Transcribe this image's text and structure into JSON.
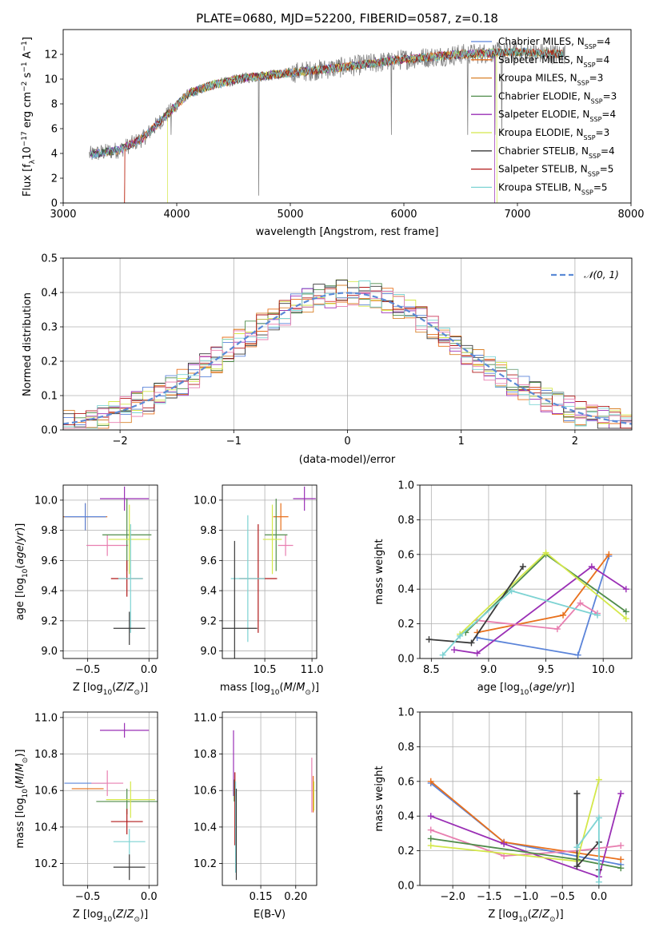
{
  "colors": {
    "Chabrier MILES": "#5b84d9",
    "Salpeter MILES": "#e8701c",
    "Kroupa MILES": "#d9822b",
    "Chabrier ELODIE": "#4f8c4a",
    "Salpeter ELODIE": "#9a2fb5",
    "Kroupa ELODIE": "#d4e84a",
    "Chabrier STELIB": "#3a3a3a",
    "Salpeter STELIB": "#b01818",
    "Kroupa STELIB": "#7dd3d3",
    "pink": "#e87fb0",
    "data": "#808080",
    "normal": "#5b8ad6"
  },
  "chart_data": [
    {
      "id": "spectrum",
      "type": "line",
      "title": "PLATE=0680, MJD=52200, FIBERID=0587, z=0.18",
      "xlabel": "wavelength [Angstrom, rest frame]",
      "xlim": [
        3000,
        8000
      ],
      "ylim": [
        0,
        14
      ],
      "xticks": [
        "3000",
        "4000",
        "5000",
        "6000",
        "7000",
        "8000"
      ],
      "yticks": [
        "0",
        "2",
        "4",
        "6",
        "8",
        "10",
        "12"
      ],
      "legend_position": "top-right",
      "legend": [
        {
          "prefix": "Chabrier MILES, N",
          "sub": "SSP",
          "suffix": "=4",
          "color": "#5b84d9"
        },
        {
          "prefix": "Salpeter MILES, N",
          "sub": "SSP",
          "suffix": "=4",
          "color": "#e8701c"
        },
        {
          "prefix": "Kroupa MILES, N",
          "sub": "SSP",
          "suffix": "=3",
          "color": "#d9822b"
        },
        {
          "prefix": "Chabrier ELODIE, N",
          "sub": "SSP",
          "suffix": "=3",
          "color": "#4f8c4a"
        },
        {
          "prefix": "Salpeter ELODIE, N",
          "sub": "SSP",
          "suffix": "=4",
          "color": "#9a2fb5"
        },
        {
          "prefix": "Kroupa ELODIE, N",
          "sub": "SSP",
          "suffix": "=3",
          "color": "#d4e84a"
        },
        {
          "prefix": "Chabrier STELIB, N",
          "sub": "SSP",
          "suffix": "=4",
          "color": "#3a3a3a"
        },
        {
          "prefix": "Salpeter STELIB, N",
          "sub": "SSP",
          "suffix": "=5",
          "color": "#b01818"
        },
        {
          "prefix": "Kroupa STELIB, N",
          "sub": "SSP",
          "suffix": "=5",
          "color": "#7dd3d3"
        }
      ],
      "continuum": {
        "x": [
          3230,
          3500,
          3700,
          3900,
          4100,
          4300,
          4600,
          5000,
          5500,
          6000,
          6500,
          7000,
          7400
        ],
        "y": [
          3.9,
          4.3,
          5.2,
          7.0,
          8.8,
          9.5,
          10.1,
          10.5,
          11.0,
          11.6,
          12.0,
          12.2,
          12.0
        ]
      }
    },
    {
      "id": "residuals",
      "type": "line",
      "xlabel": "(data-model)/error",
      "ylabel": "Normed distribution",
      "xlim": [
        -2.5,
        2.5
      ],
      "ylim": [
        0,
        0.5
      ],
      "xticks": [
        "−2",
        "−1",
        "0",
        "1",
        "2"
      ],
      "yticks": [
        "0.0",
        "0.1",
        "0.2",
        "0.3",
        "0.4",
        "0.5"
      ],
      "legend": "𝒩(0, 1)",
      "legend_position": "top-right"
    },
    {
      "id": "age-vs-Z",
      "type": "scatter",
      "xlim": [
        -0.7,
        0.07
      ],
      "ylim": [
        8.95,
        10.1
      ],
      "xticks": [
        "−0.5",
        "0.0"
      ],
      "yticks": [
        "9.0",
        "9.2",
        "9.4",
        "9.6",
        "9.8",
        "10.0"
      ],
      "points": [
        {
          "x": -0.52,
          "y": 9.89,
          "xerr": 0.18,
          "yerr": 0.09,
          "c": "#e8701c"
        },
        {
          "x": -0.52,
          "y": 9.89,
          "xerr": 0.17,
          "yerr": 0.09,
          "c": "#5b84d9"
        },
        {
          "x": -0.34,
          "y": 9.7,
          "xerr": 0.17,
          "yerr": 0.07,
          "c": "#e87fb0"
        },
        {
          "x": -0.2,
          "y": 10.01,
          "xerr": 0.2,
          "yerr": 0.08,
          "c": "#9a2fb5"
        },
        {
          "x": -0.18,
          "y": 9.77,
          "xerr": 0.2,
          "yerr": 0.24,
          "c": "#4f8c4a"
        },
        {
          "x": -0.16,
          "y": 9.74,
          "xerr": 0.17,
          "yerr": 0.23,
          "c": "#d4e84a"
        },
        {
          "x": -0.18,
          "y": 9.48,
          "xerr": 0.13,
          "yerr": 0.12,
          "c": "#b01818"
        },
        {
          "x": -0.15,
          "y": 9.48,
          "xerr": 0.1,
          "yerr": 0.36,
          "c": "#7dd3d3"
        },
        {
          "x": -0.16,
          "y": 9.15,
          "xerr": 0.13,
          "yerr": 0.11,
          "c": "#3a3a3a"
        }
      ]
    },
    {
      "id": "age-vs-mass",
      "type": "scatter",
      "xlim": [
        10.05,
        11.05
      ],
      "ylim": [
        8.95,
        10.1
      ],
      "xticks": [
        "10.5",
        "11.0"
      ],
      "yticks": [
        "9.0",
        "9.2",
        "9.4",
        "9.6",
        "9.8",
        "10.0"
      ],
      "points": [
        {
          "x": 10.67,
          "y": 9.89,
          "xerr": 0.08,
          "yerr": 0.09,
          "c": "#e8701c"
        },
        {
          "x": 10.72,
          "y": 9.7,
          "xerr": 0.08,
          "yerr": 0.07,
          "c": "#e87fb0"
        },
        {
          "x": 10.92,
          "y": 10.01,
          "xerr": 0.12,
          "yerr": 0.08,
          "c": "#9a2fb5"
        },
        {
          "x": 10.62,
          "y": 9.77,
          "xerr": 0.12,
          "yerr": 0.24,
          "c": "#4f8c4a"
        },
        {
          "x": 10.58,
          "y": 9.74,
          "xerr": 0.1,
          "yerr": 0.23,
          "c": "#d4e84a"
        },
        {
          "x": 10.43,
          "y": 9.48,
          "xerr": 0.2,
          "yerr": 0.36,
          "c": "#b01818"
        },
        {
          "x": 10.32,
          "y": 9.48,
          "xerr": 0.18,
          "yerr": 0.42,
          "c": "#7dd3d3"
        },
        {
          "x": 10.18,
          "y": 9.15,
          "xerr": 0.24,
          "yerr": 0.58,
          "c": "#3a3a3a"
        }
      ]
    },
    {
      "id": "weight-vs-age",
      "type": "line",
      "xlabel": "age",
      "ylabel": "mass weight",
      "xlim": [
        8.4,
        10.25
      ],
      "ylim": [
        0,
        1
      ],
      "xticks": [
        "8.5",
        "9.0",
        "9.5",
        "10.0"
      ],
      "yticks": [
        "0.0",
        "0.2",
        "0.4",
        "0.6",
        "0.8",
        "1.0"
      ],
      "series": [
        {
          "c": "#5b84d9",
          "x": [
            8.9,
            9.78,
            10.05
          ],
          "y": [
            0.12,
            0.02,
            0.59
          ]
        },
        {
          "c": "#e8701c",
          "x": [
            8.9,
            9.65,
            10.05
          ],
          "y": [
            0.15,
            0.25,
            0.6
          ]
        },
        {
          "c": "#9a2fb5",
          "x": [
            8.7,
            8.9,
            9.9,
            10.2
          ],
          "y": [
            0.05,
            0.03,
            0.53,
            0.4
          ]
        },
        {
          "c": "#e87fb0",
          "x": [
            8.9,
            9.6,
            9.8,
            9.95
          ],
          "y": [
            0.22,
            0.17,
            0.32,
            0.26
          ]
        },
        {
          "c": "#4f8c4a",
          "x": [
            8.8,
            9.5,
            10.2
          ],
          "y": [
            0.15,
            0.6,
            0.27
          ]
        },
        {
          "c": "#d4e84a",
          "x": [
            8.75,
            9.5,
            10.2
          ],
          "y": [
            0.14,
            0.61,
            0.23
          ]
        },
        {
          "c": "#3a3a3a",
          "x": [
            8.48,
            8.85,
            9.3
          ],
          "y": [
            0.11,
            0.09,
            0.53
          ]
        },
        {
          "c": "#7dd3d3",
          "x": [
            8.6,
            8.75,
            9.2,
            9.95
          ],
          "y": [
            0.02,
            0.13,
            0.39,
            0.25
          ]
        }
      ]
    },
    {
      "id": "mass-vs-Z",
      "type": "scatter",
      "xlim": [
        -0.7,
        0.07
      ],
      "ylim": [
        10.08,
        11.03
      ],
      "xticks": [
        "−0.5",
        "0.0"
      ],
      "yticks": [
        "10.2",
        "10.4",
        "10.6",
        "10.8",
        "11.0"
      ],
      "points": [
        {
          "x": -0.52,
          "y": 10.64,
          "xerr": 0.17,
          "yerr": 0.0,
          "c": "#5b84d9"
        },
        {
          "x": -0.5,
          "y": 10.61,
          "xerr": 0.13,
          "yerr": 0.0,
          "c": "#e8701c"
        },
        {
          "x": -0.34,
          "y": 10.64,
          "xerr": 0.13,
          "yerr": 0.07,
          "c": "#e87fb0"
        },
        {
          "x": -0.2,
          "y": 10.93,
          "xerr": 0.2,
          "yerr": 0.04,
          "c": "#9a2fb5"
        },
        {
          "x": -0.18,
          "y": 10.54,
          "xerr": 0.25,
          "yerr": 0.07,
          "c": "#4f8c4a"
        },
        {
          "x": -0.15,
          "y": 10.55,
          "xerr": 0.2,
          "yerr": 0.1,
          "c": "#d4e84a"
        },
        {
          "x": -0.18,
          "y": 10.43,
          "xerr": 0.13,
          "yerr": 0.07,
          "c": "#b01818"
        },
        {
          "x": -0.16,
          "y": 10.32,
          "xerr": 0.13,
          "yerr": 0.07,
          "c": "#7dd3d3"
        },
        {
          "x": -0.16,
          "y": 10.18,
          "xerr": 0.13,
          "yerr": 0.07,
          "c": "#3a3a3a"
        }
      ]
    },
    {
      "id": "mass-vs-EBV",
      "type": "scatter",
      "xlabel": "E(B-V)",
      "xlim": [
        0.095,
        0.23
      ],
      "ylim": [
        10.08,
        11.03
      ],
      "xticks": [
        "0.15",
        "0.20"
      ],
      "yticks": [
        "10.2",
        "10.4",
        "10.6",
        "10.8",
        "11.0"
      ],
      "points": [
        {
          "x": 0.111,
          "y": 10.75,
          "xerr": 0.0,
          "yerr": 0.18,
          "c": "#9a2fb5"
        },
        {
          "x": 0.112,
          "y": 10.6,
          "xerr": 0.0,
          "yerr": 0.06,
          "c": "#4f8c4a"
        },
        {
          "x": 0.113,
          "y": 10.5,
          "xerr": 0.0,
          "yerr": 0.2,
          "c": "#b01818"
        },
        {
          "x": 0.114,
          "y": 10.4,
          "xerr": 0.0,
          "yerr": 0.25,
          "c": "#7dd3d3"
        },
        {
          "x": 0.115,
          "y": 10.36,
          "xerr": 0.0,
          "yerr": 0.25,
          "c": "#3a3a3a"
        },
        {
          "x": 0.223,
          "y": 10.63,
          "xerr": 0.0,
          "yerr": 0.15,
          "c": "#e87fb0"
        },
        {
          "x": 0.225,
          "y": 10.58,
          "xerr": 0.0,
          "yerr": 0.1,
          "c": "#e8701c"
        },
        {
          "x": 0.226,
          "y": 10.57,
          "xerr": 0.0,
          "yerr": 0.08,
          "c": "#d4e84a"
        }
      ]
    },
    {
      "id": "weight-vs-Z",
      "type": "line",
      "ylabel": "mass weight",
      "xlim": [
        -2.45,
        0.45
      ],
      "ylim": [
        0,
        1
      ],
      "xticks": [
        "−2.0",
        "−1.5",
        "−1.0",
        "−0.5",
        "0.0"
      ],
      "yticks": [
        "0.0",
        "0.2",
        "0.4",
        "0.6",
        "0.8",
        "1.0"
      ],
      "series": [
        {
          "c": "#5b84d9",
          "x": [
            -2.3,
            -1.3,
            0.3
          ],
          "y": [
            0.59,
            0.25,
            0.12
          ]
        },
        {
          "c": "#e8701c",
          "x": [
            -2.3,
            -1.3,
            0.3
          ],
          "y": [
            0.6,
            0.25,
            0.15
          ]
        },
        {
          "c": "#9a2fb5",
          "x": [
            -2.3,
            -1.3,
            0.0,
            0.3
          ],
          "y": [
            0.4,
            0.24,
            0.05,
            0.53
          ]
        },
        {
          "c": "#e87fb0",
          "x": [
            -2.3,
            -1.3,
            -0.3,
            0.3
          ],
          "y": [
            0.32,
            0.17,
            0.2,
            0.23
          ]
        },
        {
          "c": "#4f8c4a",
          "x": [
            -2.3,
            -0.3,
            0.3
          ],
          "y": [
            0.27,
            0.15,
            0.1
          ]
        },
        {
          "c": "#d4e84a",
          "x": [
            -2.3,
            -0.3,
            0.0
          ],
          "y": [
            0.23,
            0.14,
            0.61
          ]
        },
        {
          "c": "#3a3a3a",
          "x": [
            -0.3,
            -0.3,
            0.0,
            0.0
          ],
          "y": [
            0.53,
            0.11,
            0.25,
            0.09
          ]
        },
        {
          "c": "#7dd3d3",
          "x": [
            -0.3,
            0.0,
            0.0
          ],
          "y": [
            0.22,
            0.39,
            0.02
          ]
        }
      ]
    }
  ],
  "labels": {
    "spectrum_ylabel_html": "Flux [f<tspan baseline-shift=\"sub\" font-size=\"9\">λ</tspan>10<tspan baseline-shift=\"super\" font-size=\"9\">−17</tspan> erg cm<tspan baseline-shift=\"super\" font-size=\"9\">−2</tspan> s<tspan baseline-shift=\"super\" font-size=\"9\">−1</tspan> A<tspan baseline-shift=\"super\" font-size=\"9\">−1</tspan>]",
    "age_ylabel_html": "age  [log<tspan baseline-shift=\"sub\" font-size=\"9\">10</tspan>(<tspan font-style=\"italic\">age</tspan>/<tspan font-style=\"italic\">yr</tspan>)]",
    "Z_xlabel_html": "Z [log<tspan baseline-shift=\"sub\" font-size=\"9\">10</tspan>(<tspan font-style=\"italic\">Z</tspan>/<tspan font-style=\"italic\">Z</tspan><tspan baseline-shift=\"sub\" font-size=\"9\">⊙</tspan>)]",
    "mass_xlabel_html": "mass [log<tspan baseline-shift=\"sub\" font-size=\"9\">10</tspan>(<tspan font-style=\"italic\">M</tspan>/<tspan font-style=\"italic\">M</tspan><tspan baseline-shift=\"sub\" font-size=\"9\">⊙</tspan>)]",
    "mass_ylabel_html": "mass [log<tspan baseline-shift=\"sub\" font-size=\"9\">10</tspan>(<tspan font-style=\"italic\">M</tspan>/<tspan font-style=\"italic\">M</tspan><tspan baseline-shift=\"sub\" font-size=\"9\">⊙</tspan>)]",
    "age_xlabel_html": "age  [log<tspan baseline-shift=\"sub\" font-size=\"9\">10</tspan>(<tspan font-style=\"italic\">age</tspan>/<tspan font-style=\"italic\">yr</tspan>)]"
  }
}
